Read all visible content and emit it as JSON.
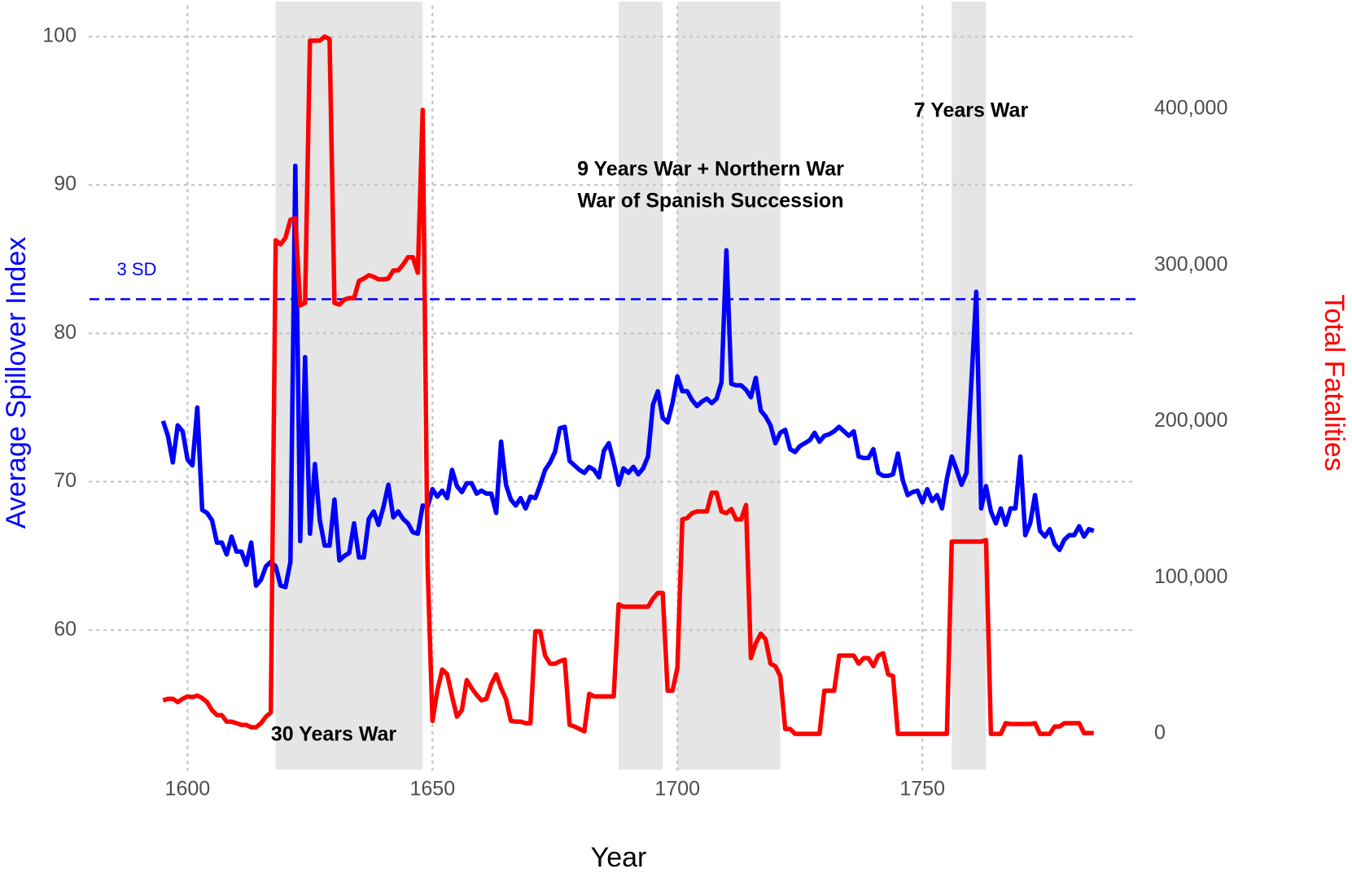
{
  "chart_data": {
    "type": "line",
    "x_label": "Year",
    "y_label": "Average Spillover Index",
    "y2_label": "Total Fatalities",
    "x": [
      1595,
      1596,
      1597,
      1598,
      1599,
      1600,
      1601,
      1602,
      1603,
      1604,
      1605,
      1606,
      1607,
      1608,
      1609,
      1610,
      1611,
      1612,
      1613,
      1614,
      1615,
      1616,
      1617,
      1618,
      1619,
      1620,
      1621,
      1622,
      1623,
      1624,
      1625,
      1626,
      1627,
      1628,
      1629,
      1630,
      1631,
      1632,
      1633,
      1634,
      1635,
      1636,
      1637,
      1638,
      1639,
      1640,
      1641,
      1642,
      1643,
      1644,
      1645,
      1646,
      1647,
      1648,
      1649,
      1650,
      1651,
      1652,
      1653,
      1654,
      1655,
      1656,
      1657,
      1658,
      1659,
      1660,
      1661,
      1662,
      1663,
      1664,
      1665,
      1666,
      1667,
      1668,
      1669,
      1670,
      1671,
      1672,
      1673,
      1674,
      1675,
      1676,
      1677,
      1678,
      1679,
      1680,
      1681,
      1682,
      1683,
      1684,
      1685,
      1686,
      1687,
      1688,
      1689,
      1690,
      1691,
      1692,
      1693,
      1694,
      1695,
      1696,
      1697,
      1698,
      1699,
      1700,
      1701,
      1702,
      1703,
      1704,
      1705,
      1706,
      1707,
      1708,
      1709,
      1710,
      1711,
      1712,
      1713,
      1714,
      1715,
      1716,
      1717,
      1718,
      1719,
      1720,
      1721,
      1722,
      1723,
      1724,
      1725,
      1726,
      1727,
      1728,
      1729,
      1730,
      1731,
      1732,
      1733,
      1734,
      1735,
      1736,
      1737,
      1738,
      1739,
      1740,
      1741,
      1742,
      1743,
      1744,
      1745,
      1746,
      1747,
      1748,
      1749,
      1750,
      1751,
      1752,
      1753,
      1754,
      1755,
      1756,
      1757,
      1758,
      1759,
      1760,
      1761,
      1762,
      1763,
      1764,
      1765,
      1766,
      1767,
      1768,
      1769,
      1770,
      1771,
      1772,
      1773,
      1774,
      1775,
      1776,
      1777,
      1778,
      1779,
      1780,
      1781,
      1782,
      1783,
      1784,
      1785
    ],
    "series": [
      {
        "color": "#0000ff",
        "axis": "y",
        "values": [
          74.1,
          73.1,
          71.3,
          73.8,
          73.4,
          71.5,
          71.1,
          75.0,
          68.1,
          67.9,
          67.4,
          65.9,
          65.9,
          65.1,
          66.3,
          65.3,
          65.3,
          64.4,
          65.9,
          63.0,
          63.4,
          64.3,
          64.6,
          64.3,
          63.0,
          62.9,
          64.6,
          91.3,
          66.0,
          78.4,
          66.5,
          71.2,
          67.4,
          65.7,
          65.7,
          68.8,
          64.7,
          65.0,
          65.2,
          67.2,
          64.9,
          64.9,
          67.5,
          68.0,
          67.1,
          68.3,
          69.8,
          67.6,
          68.0,
          67.5,
          67.2,
          66.6,
          66.5,
          68.4,
          68.3,
          69.5,
          69.0,
          69.4,
          68.9,
          70.8,
          69.7,
          69.3,
          69.9,
          69.9,
          69.2,
          69.4,
          69.2,
          69.2,
          67.9,
          72.7,
          69.8,
          68.8,
          68.4,
          68.9,
          68.2,
          69.0,
          68.9,
          69.8,
          70.8,
          71.3,
          72.0,
          73.6,
          73.7,
          71.4,
          71.1,
          70.8,
          70.6,
          71.0,
          70.8,
          70.3,
          72.1,
          72.6,
          71.3,
          69.8,
          70.9,
          70.6,
          71.0,
          70.5,
          70.9,
          71.7,
          75.2,
          76.1,
          74.3,
          74.0,
          75.3,
          77.1,
          76.1,
          76.1,
          75.5,
          75.1,
          75.4,
          75.6,
          75.3,
          75.6,
          76.7,
          85.6,
          76.6,
          76.5,
          76.5,
          76.2,
          75.7,
          77.0,
          74.8,
          74.4,
          73.8,
          72.6,
          73.3,
          73.5,
          72.2,
          72.0,
          72.4,
          72.6,
          72.8,
          73.3,
          72.7,
          73.1,
          73.2,
          73.4,
          73.7,
          73.4,
          73.1,
          73.4,
          71.7,
          71.6,
          71.6,
          72.2,
          70.6,
          70.4,
          70.4,
          70.5,
          71.9,
          70.1,
          69.1,
          69.3,
          69.4,
          68.6,
          69.5,
          68.7,
          69.1,
          68.2,
          70.2,
          71.7,
          70.8,
          69.8,
          70.6,
          76.7,
          82.8,
          68.2,
          69.7,
          68.0,
          67.2,
          68.2,
          67.1,
          68.2,
          68.2,
          71.7,
          66.4,
          67.2,
          69.1,
          66.7,
          66.3,
          66.8,
          65.8,
          65.4,
          66.1,
          66.4,
          66.4,
          67.0,
          66.3,
          66.8,
          66.7
        ]
      },
      {
        "color": "#ff0000",
        "axis": "y2",
        "values": [
          21400,
          22400,
          22400,
          20300,
          22400,
          24000,
          23500,
          24500,
          22900,
          20300,
          15100,
          12000,
          12000,
          7800,
          7800,
          6800,
          5700,
          5700,
          4200,
          4200,
          6800,
          11000,
          13600,
          316000,
          313400,
          317600,
          329100,
          330100,
          274300,
          275900,
          443800,
          443800,
          443800,
          446400,
          444800,
          275900,
          274800,
          278000,
          279000,
          279000,
          290000,
          291500,
          293600,
          292600,
          291000,
          291000,
          291500,
          296700,
          296700,
          300400,
          305100,
          305100,
          295200,
          399500,
          107400,
          8300,
          27600,
          41200,
          38100,
          24000,
          11000,
          15100,
          34400,
          29200,
          25000,
          21400,
          22400,
          31800,
          38100,
          29200,
          22400,
          8300,
          7800,
          7800,
          6800,
          6800,
          65700,
          65700,
          50100,
          44900,
          44900,
          46500,
          47500,
          5700,
          4700,
          3100,
          1600,
          25600,
          24000,
          24000,
          24000,
          24000,
          24000,
          82900,
          81400,
          81400,
          81400,
          81400,
          81400,
          81400,
          86600,
          90200,
          90200,
          27600,
          27600,
          42200,
          137200,
          138200,
          141300,
          142400,
          142400,
          142400,
          154400,
          154400,
          142400,
          141300,
          143900,
          137200,
          137200,
          146500,
          48500,
          57900,
          64100,
          60500,
          44900,
          43300,
          37000,
          3100,
          3100,
          0,
          0,
          0,
          0,
          0,
          0,
          27600,
          27600,
          27600,
          50100,
          50100,
          50100,
          50100,
          44900,
          48500,
          48500,
          43300,
          50100,
          51600,
          38100,
          37000,
          0,
          0,
          0,
          0,
          0,
          0,
          0,
          0,
          0,
          0,
          0,
          123100,
          123100,
          123100,
          123100,
          123100,
          123100,
          123100,
          124100,
          0,
          0,
          0,
          6800,
          6300,
          6300,
          6300,
          6300,
          6300,
          6800,
          0,
          0,
          0,
          4700,
          4700,
          6800,
          6800,
          6800,
          6800,
          500,
          500,
          500
        ]
      }
    ],
    "xlim": [
      1580,
      1793.5
    ],
    "xticks": [
      1600,
      1650,
      1700,
      1750
    ],
    "ylim": [
      50.6,
      102
    ],
    "yticks": [
      60,
      70,
      80,
      90,
      100
    ],
    "y2lim": [
      -22900,
      465400
    ],
    "y2ticks": [
      0,
      {
        "value": 100000,
        "label": "100,000"
      },
      {
        "value": 200000,
        "label": "200,000"
      },
      {
        "value": 300000,
        "label": "300,000"
      },
      {
        "value": 400000,
        "label": "400,000"
      }
    ],
    "grid": true,
    "shaded_periods": [
      [
        1618,
        1648
      ],
      [
        1688,
        1697
      ],
      [
        1700,
        1721
      ],
      [
        1756,
        1763
      ]
    ],
    "reference_line": {
      "value": 82.3,
      "label": "3 SD",
      "color": "#0000ff"
    },
    "annotations": [
      "30 Years War",
      "9 Years War + Northern War",
      "War of Spanish Succession",
      "7 Years War"
    ]
  }
}
